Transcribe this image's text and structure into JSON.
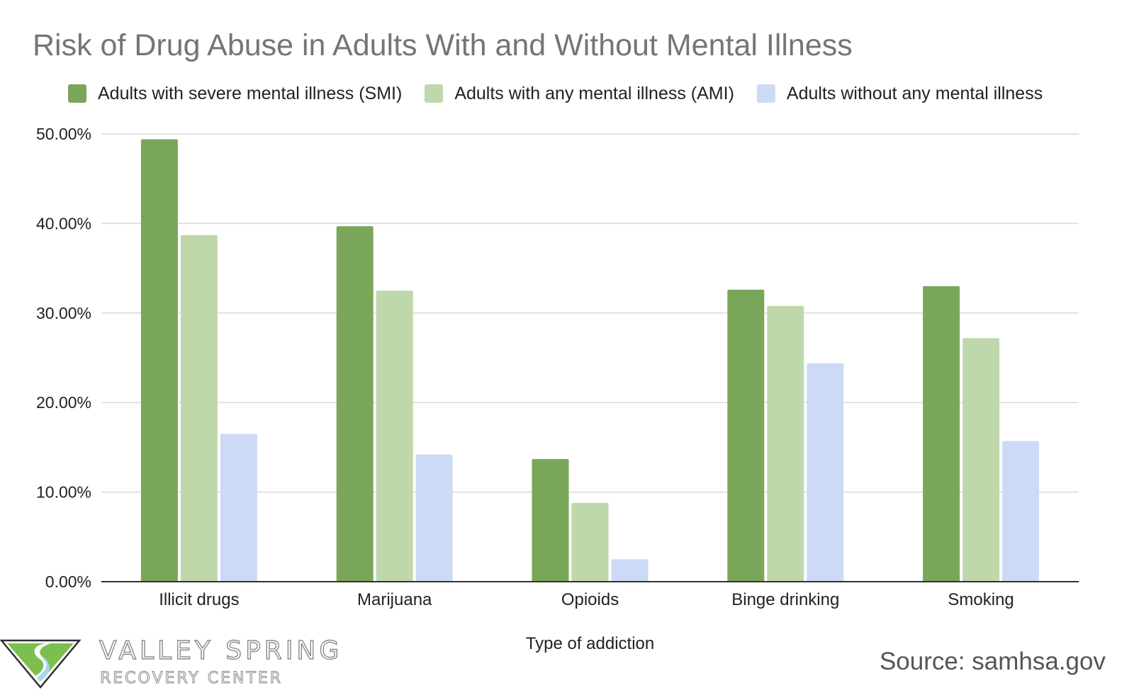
{
  "chart_data": {
    "type": "bar",
    "title": "Risk of Drug Abuse in Adults With and Without Mental Illness",
    "xlabel": "Type of addiction",
    "ylabel": "",
    "categories": [
      "Illicit drugs",
      "Marijuana",
      "Opioids",
      "Binge drinking",
      "Smoking"
    ],
    "series": [
      {
        "name": "Adults with severe mental illness (SMI)",
        "color": "#7aa65a",
        "values": [
          49.4,
          39.7,
          13.7,
          32.6,
          33.0
        ]
      },
      {
        "name": "Adults with any mental illness (AMI)",
        "color": "#bfd8ab",
        "values": [
          38.7,
          32.5,
          8.8,
          30.8,
          27.2
        ]
      },
      {
        "name": "Adults without any mental illness",
        "color": "#ccdaf5",
        "values": [
          16.5,
          14.2,
          2.5,
          24.4,
          15.7
        ]
      }
    ],
    "ylim": [
      0,
      50
    ],
    "yticks": [
      "0.00%",
      "10.00%",
      "20.00%",
      "30.00%",
      "40.00%",
      "50.00%"
    ],
    "grid": true,
    "legend_position": "top"
  },
  "source": "Source: samhsa.gov",
  "logo": {
    "name": "VALLEY SPRING",
    "tagline": "RECOVERY CENTER"
  }
}
